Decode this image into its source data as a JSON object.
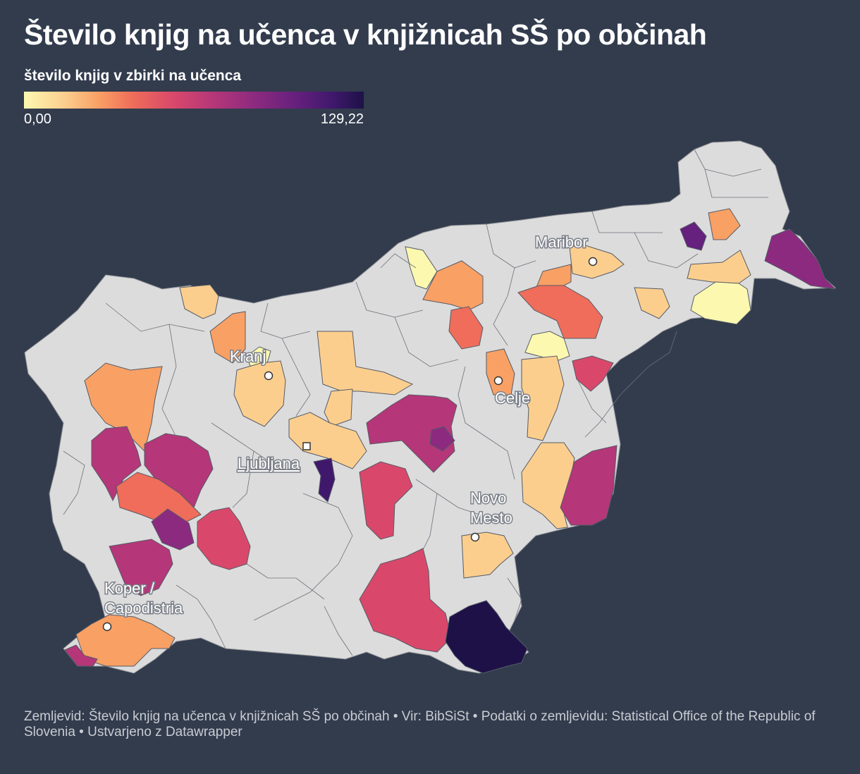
{
  "title": "Število knjig na učenca v knjižnicah SŠ po občinah",
  "legend": {
    "title": "število knjig v zbirki na učenca",
    "min_label": "0,00",
    "max_label": "129,22",
    "min_value": 0,
    "max_value": 129.22,
    "colors": [
      "#fcf8b0",
      "#fcce8e",
      "#f9a065",
      "#ef6d5a",
      "#d9486a",
      "#b53679",
      "#8c2a7f",
      "#66207d",
      "#3f186c",
      "#1d1147"
    ]
  },
  "no_data_color": "#dcdcdc",
  "cities": {
    "maribor": "Maribor",
    "kranj": "Kranj",
    "celje": "Celje",
    "ljubljana": "Ljubljana",
    "novo_mesto_1": "Novo",
    "novo_mesto_2": "Mesto",
    "koper_1": "Koper /",
    "koper_2": "Capodistria"
  },
  "footer": "Zemljevid: Število knjig na učenca v knjižnicah SŠ po občinah • Vir: BibSiSt • Podatki o zemljevidu: Statistical Office of the Republic of Slovenia • Ustvarjeno z Datawrapper"
}
